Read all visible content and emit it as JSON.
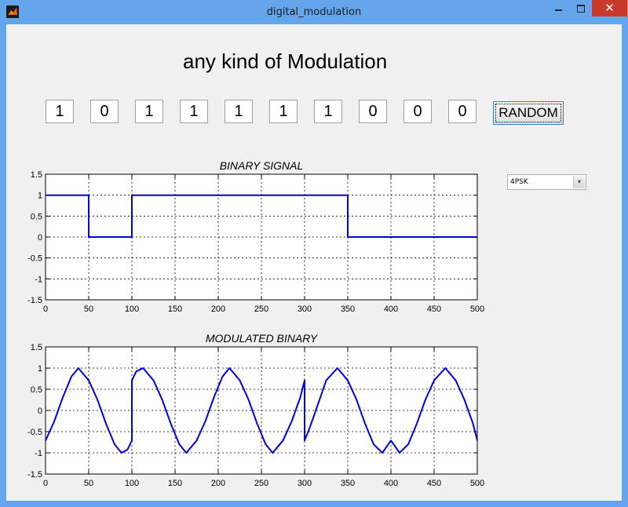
{
  "window": {
    "title": "digital_modulation",
    "close_glyph": "✕",
    "icon": "matlab-icon"
  },
  "heading": "any kind of Modulation",
  "bits": [
    "1",
    "0",
    "1",
    "1",
    "1",
    "1",
    "1",
    "0",
    "0",
    "0"
  ],
  "random_button": "RANDOM",
  "modulation_select": {
    "selected": "4PSK",
    "arrow_glyph": "▾"
  },
  "colors": {
    "signal": "#0000dd",
    "titlebar": "#64a5ec",
    "close": "#c7392b"
  },
  "chart_data": [
    {
      "type": "line",
      "title": "BINARY SIGNAL",
      "xlim": [
        0,
        500
      ],
      "ylim": [
        -1.5,
        1.5
      ],
      "xticks": [
        0,
        50,
        100,
        150,
        200,
        250,
        300,
        350,
        400,
        450,
        500
      ],
      "yticks": [
        -1.5,
        -1,
        -0.5,
        0,
        0.5,
        1,
        1.5
      ],
      "grid": true,
      "series": [
        {
          "x": [
            0,
            50,
            50,
            100,
            100,
            350,
            350,
            500
          ],
          "y": [
            1,
            1,
            0,
            0,
            1,
            1,
            0,
            0
          ]
        }
      ]
    },
    {
      "type": "line",
      "title": "MODULATED BINARY",
      "xlim": [
        0,
        500
      ],
      "ylim": [
        -1.5,
        1.5
      ],
      "xticks": [
        0,
        50,
        100,
        150,
        200,
        250,
        300,
        350,
        400,
        450,
        500
      ],
      "yticks": [
        -1.5,
        -1,
        -0.5,
        0,
        0.5,
        1,
        1.5
      ],
      "grid": true,
      "series": [
        {
          "x": [
            0,
            10,
            20,
            30,
            38,
            50,
            60,
            70,
            80,
            88,
            95,
            100,
            100,
            105,
            113,
            125,
            135,
            145,
            155,
            163,
            175,
            185,
            195,
            205,
            213,
            225,
            235,
            245,
            255,
            263,
            275,
            285,
            295,
            300,
            300,
            305,
            313,
            325,
            338,
            350,
            360,
            370,
            380,
            390,
            400,
            410,
            420,
            430,
            440,
            450,
            463,
            475,
            485,
            495,
            500
          ],
          "y": [
            -0.71,
            -0.26,
            0.31,
            0.8,
            1.0,
            0.71,
            0.26,
            -0.31,
            -0.8,
            -1.0,
            -0.92,
            -0.71,
            0.71,
            0.92,
            1.0,
            0.71,
            0.26,
            -0.31,
            -0.8,
            -1.0,
            -0.71,
            -0.26,
            0.31,
            0.8,
            1.0,
            0.71,
            0.26,
            -0.31,
            -0.8,
            -1.0,
            -0.71,
            -0.26,
            0.31,
            0.71,
            -0.71,
            -0.46,
            0.0,
            0.71,
            1.0,
            0.71,
            0.26,
            -0.31,
            -0.8,
            -1.0,
            -0.71,
            -1.0,
            -0.8,
            -0.31,
            0.26,
            0.71,
            1.0,
            0.71,
            0.26,
            -0.31,
            -0.71
          ]
        }
      ]
    }
  ]
}
